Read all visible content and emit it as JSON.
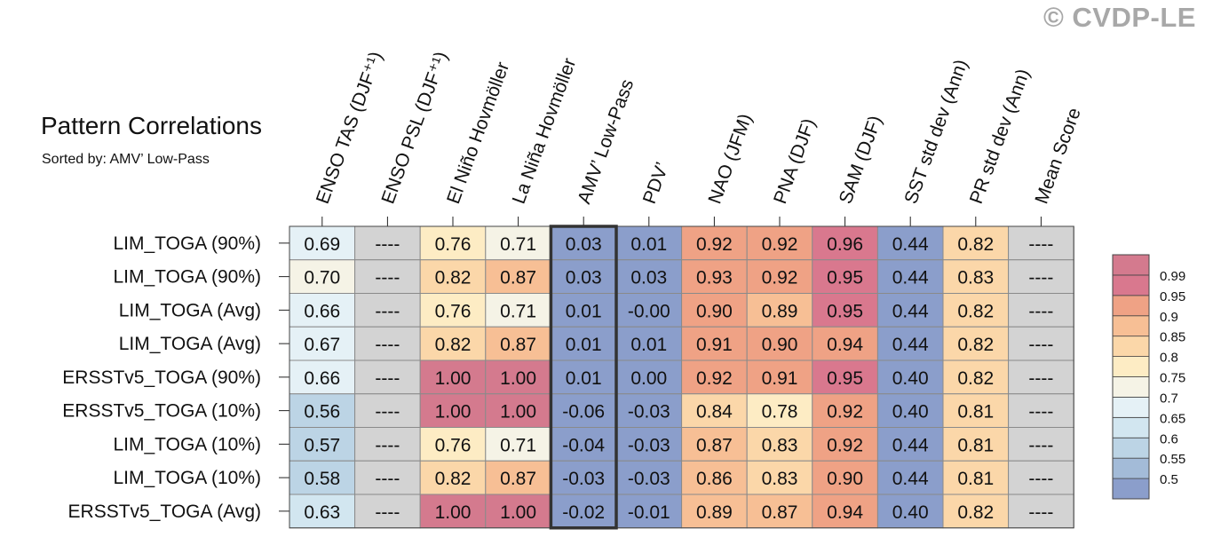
{
  "title": "Pattern Correlations",
  "subtitle": "Sorted by: AMV’ Low-Pass",
  "watermark": "© CVDP-LE",
  "chart_data": {
    "type": "heatmap",
    "columns": [
      "ENSO TAS (DJF⁺¹)",
      "ENSO PSL (DJF⁺¹)",
      "El Niño Hovmöller",
      "La Niña Hovmöller",
      "AMV’ Low-Pass",
      "PDV’",
      "NAO (JFM)",
      "PNA (DJF)",
      "SAM (DJF)",
      "SST std dev (Ann)",
      "PR std dev (Ann)",
      "Mean Score"
    ],
    "highlighted_column": "AMV’ Low-Pass",
    "missing_label": "----",
    "rows": [
      {
        "name": "LIM_TOGA (90%)",
        "values": [
          0.69,
          null,
          0.76,
          0.71,
          0.03,
          0.01,
          0.92,
          0.92,
          0.96,
          0.44,
          0.82,
          null
        ],
        "labels": [
          "0.69",
          "----",
          "0.76",
          "0.71",
          "0.03",
          "0.01",
          "0.92",
          "0.92",
          "0.96",
          "0.44",
          "0.82",
          "----"
        ]
      },
      {
        "name": "LIM_TOGA (90%)",
        "values": [
          0.7,
          null,
          0.82,
          0.87,
          0.03,
          0.03,
          0.93,
          0.92,
          0.95,
          0.44,
          0.83,
          null
        ],
        "labels": [
          "0.70",
          "----",
          "0.82",
          "0.87",
          "0.03",
          "0.03",
          "0.93",
          "0.92",
          "0.95",
          "0.44",
          "0.83",
          "----"
        ]
      },
      {
        "name": "LIM_TOGA (Avg)",
        "values": [
          0.66,
          null,
          0.76,
          0.71,
          0.01,
          -0.0,
          0.9,
          0.89,
          0.95,
          0.44,
          0.82,
          null
        ],
        "labels": [
          "0.66",
          "----",
          "0.76",
          "0.71",
          "0.01",
          "-0.00",
          "0.90",
          "0.89",
          "0.95",
          "0.44",
          "0.82",
          "----"
        ]
      },
      {
        "name": "LIM_TOGA (Avg)",
        "values": [
          0.67,
          null,
          0.82,
          0.87,
          0.01,
          0.01,
          0.91,
          0.9,
          0.94,
          0.44,
          0.82,
          null
        ],
        "labels": [
          "0.67",
          "----",
          "0.82",
          "0.87",
          "0.01",
          "0.01",
          "0.91",
          "0.90",
          "0.94",
          "0.44",
          "0.82",
          "----"
        ]
      },
      {
        "name": "ERSSTv5_TOGA (90%)",
        "values": [
          0.66,
          null,
          1.0,
          1.0,
          0.01,
          0.0,
          0.92,
          0.91,
          0.95,
          0.4,
          0.82,
          null
        ],
        "labels": [
          "0.66",
          "----",
          "1.00",
          "1.00",
          "0.01",
          "0.00",
          "0.92",
          "0.91",
          "0.95",
          "0.40",
          "0.82",
          "----"
        ]
      },
      {
        "name": "ERSSTv5_TOGA (10%)",
        "values": [
          0.56,
          null,
          1.0,
          1.0,
          -0.06,
          -0.03,
          0.84,
          0.78,
          0.92,
          0.4,
          0.81,
          null
        ],
        "labels": [
          "0.56",
          "----",
          "1.00",
          "1.00",
          "-0.06",
          "-0.03",
          "0.84",
          "0.78",
          "0.92",
          "0.40",
          "0.81",
          "----"
        ]
      },
      {
        "name": "LIM_TOGA (10%)",
        "values": [
          0.57,
          null,
          0.76,
          0.71,
          -0.04,
          -0.03,
          0.87,
          0.83,
          0.92,
          0.44,
          0.81,
          null
        ],
        "labels": [
          "0.57",
          "----",
          "0.76",
          "0.71",
          "-0.04",
          "-0.03",
          "0.87",
          "0.83",
          "0.92",
          "0.44",
          "0.81",
          "----"
        ]
      },
      {
        "name": "LIM_TOGA (10%)",
        "values": [
          0.58,
          null,
          0.82,
          0.87,
          -0.03,
          -0.03,
          0.86,
          0.83,
          0.9,
          0.44,
          0.81,
          null
        ],
        "labels": [
          "0.58",
          "----",
          "0.82",
          "0.87",
          "-0.03",
          "-0.03",
          "0.86",
          "0.83",
          "0.90",
          "0.44",
          "0.81",
          "----"
        ]
      },
      {
        "name": "ERSSTv5_TOGA (Avg)",
        "values": [
          0.63,
          null,
          1.0,
          1.0,
          -0.02,
          -0.01,
          0.89,
          0.87,
          0.94,
          0.4,
          0.82,
          null
        ],
        "labels": [
          "0.63",
          "----",
          "1.00",
          "1.00",
          "-0.02",
          "-0.01",
          "0.89",
          "0.87",
          "0.94",
          "0.40",
          "0.82",
          "----"
        ]
      }
    ],
    "colorbar": {
      "levels": [
        0.5,
        0.55,
        0.6,
        0.65,
        0.7,
        0.75,
        0.8,
        0.85,
        0.9,
        0.95,
        0.99
      ],
      "tick_labels": [
        "0.5",
        "0.55",
        "0.6",
        "0.65",
        "0.7",
        "0.75",
        "0.8",
        "0.85",
        "0.9",
        "0.95",
        "0.99"
      ],
      "colors": [
        "#8b9ecb",
        "#a3bbd8",
        "#bcd4e5",
        "#d2e6f0",
        "#e5f1f6",
        "#f5f3e6",
        "#fdecc4",
        "#fbd7a9",
        "#f7bf95",
        "#efa285",
        "#d9788e",
        "#d47a8e"
      ]
    },
    "missing_color": "#d3d3d3"
  }
}
